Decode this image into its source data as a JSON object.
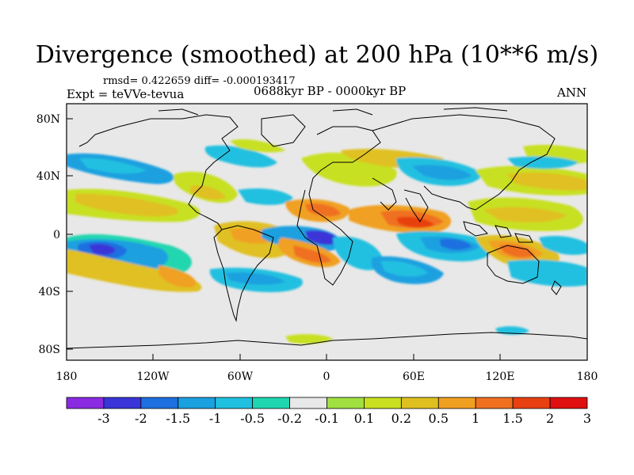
{
  "title": "Divergence (smoothed) at 200 hPa (10**6 m/s)",
  "stats": "rmsd= 0.422659  diff= -0.000193417",
  "experiment": "Expt = teVVe-tevua",
  "period": "0688kyr BP - 0000kyr BP",
  "season": "ANN",
  "lat_ticks": [
    "80N",
    "40N",
    "0",
    "40S",
    "80S"
  ],
  "lon_ticks": [
    "180",
    "120W",
    "60W",
    "0",
    "60E",
    "120E",
    "180"
  ],
  "colorbar": {
    "colors": [
      "#8a2be2",
      "#3a35d8",
      "#1e6fe0",
      "#1ba0e0",
      "#20c0e0",
      "#20d6b0",
      "#e8e8e8",
      "#a0e040",
      "#c8e020",
      "#e0c020",
      "#f0a020",
      "#f07020",
      "#e84010",
      "#e01010"
    ],
    "labels": [
      "-3",
      "-2",
      "-1.5",
      "-1",
      "-0.5",
      "-0.2",
      "-0.1",
      "0.1",
      "0.2",
      "0.5",
      "1",
      "1.5",
      "2",
      "3"
    ]
  },
  "map": {
    "background": "#e8e8e8",
    "coastline_color": "#000000"
  }
}
